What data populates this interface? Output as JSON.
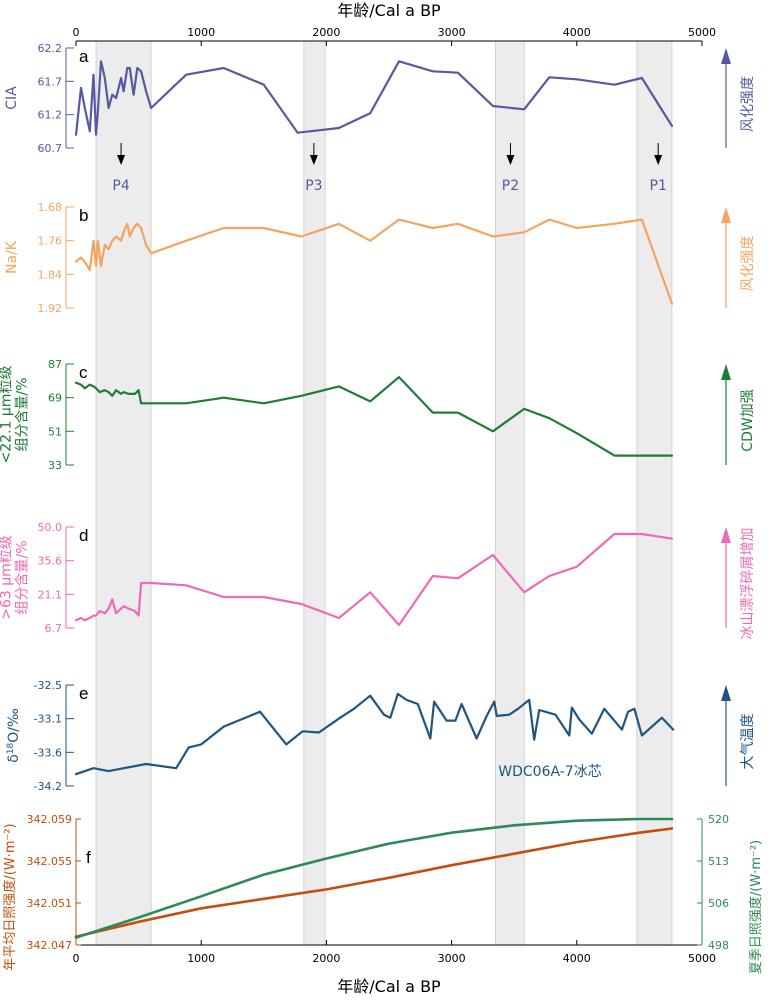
{
  "chart_data": {
    "type": "line",
    "x_axis": {
      "label": "年龄/Cal a BP",
      "range": [
        0,
        5000
      ],
      "ticks": [
        0,
        1000,
        2000,
        3000,
        4000,
        5000
      ]
    },
    "shaded_bands": [
      {
        "from": 160,
        "to": 600
      },
      {
        "from": 1820,
        "to": 1990
      },
      {
        "from": 3350,
        "to": 3580
      },
      {
        "from": 4480,
        "to": 4760
      }
    ],
    "periods": [
      {
        "label": "P4",
        "x": 360
      },
      {
        "label": "P3",
        "x": 1900
      },
      {
        "label": "P2",
        "x": 3470
      },
      {
        "label": "P1",
        "x": 4650
      }
    ],
    "panels": [
      {
        "letter": "a",
        "ylabel": "CIA",
        "color": "#565aa0",
        "yrange": [
          60.7,
          62.2
        ],
        "reverse": false,
        "ticks": [
          "62.2",
          "61.7",
          "61.2",
          "60.7"
        ],
        "right_label": "风化强度",
        "x": [
          0,
          40,
          70,
          110,
          140,
          160,
          175,
          200,
          230,
          260,
          290,
          320,
          360,
          380,
          410,
          430,
          460,
          490,
          520,
          560,
          600,
          880,
          1180,
          1500,
          1770,
          2100,
          2350,
          2580,
          2850,
          3050,
          3330,
          3580,
          3780,
          4000,
          4300,
          4520,
          4760
        ],
        "values": [
          60.9,
          61.6,
          61.3,
          60.95,
          61.8,
          60.9,
          61.25,
          62.0,
          61.75,
          61.3,
          61.5,
          61.45,
          61.75,
          61.55,
          61.9,
          61.9,
          61.5,
          61.9,
          61.85,
          61.55,
          61.3,
          61.8,
          61.9,
          61.65,
          60.93,
          61.0,
          61.22,
          62.0,
          61.85,
          61.83,
          61.33,
          61.28,
          61.76,
          61.73,
          61.65,
          61.75,
          61.03
        ]
      },
      {
        "letter": "b",
        "ylabel": "Na/K",
        "color": "#f4a460",
        "yrange": [
          1.68,
          1.92
        ],
        "reverse": true,
        "ticks": [
          "1.68",
          "1.76",
          "1.84",
          "1.92"
        ],
        "right_label": "风化强度",
        "x": [
          0,
          40,
          70,
          110,
          140,
          160,
          175,
          200,
          230,
          260,
          290,
          320,
          360,
          380,
          410,
          430,
          460,
          490,
          520,
          560,
          600,
          880,
          1180,
          1500,
          1800,
          2100,
          2350,
          2580,
          2850,
          3050,
          3330,
          3580,
          3780,
          4000,
          4300,
          4520,
          4760
        ],
        "values": [
          1.81,
          1.8,
          1.81,
          1.83,
          1.76,
          1.82,
          1.76,
          1.82,
          1.77,
          1.78,
          1.76,
          1.75,
          1.76,
          1.74,
          1.72,
          1.75,
          1.73,
          1.72,
          1.73,
          1.77,
          1.79,
          1.76,
          1.73,
          1.73,
          1.75,
          1.72,
          1.76,
          1.71,
          1.73,
          1.72,
          1.75,
          1.74,
          1.71,
          1.73,
          1.72,
          1.71,
          1.91
        ]
      },
      {
        "letter": "c",
        "ylabel": "<22.1 μm粒级组分含量/%",
        "color": "#1d7d36",
        "yrange": [
          33,
          87
        ],
        "reverse": false,
        "ticks": [
          "87",
          "69",
          "51",
          "33"
        ],
        "right_label": "CDW加强",
        "x": [
          0,
          40,
          70,
          110,
          140,
          160,
          190,
          230,
          260,
          290,
          320,
          360,
          380,
          420,
          470,
          500,
          520,
          560,
          600,
          880,
          1180,
          1500,
          1800,
          2100,
          2350,
          2580,
          2850,
          3050,
          3330,
          3580,
          3780,
          4000,
          4300,
          4520,
          4760
        ],
        "values": [
          77,
          76,
          74,
          76,
          75,
          74,
          72,
          73,
          72,
          70,
          73,
          71,
          72,
          71,
          71,
          73,
          66,
          66,
          66,
          66,
          69,
          66,
          70,
          75,
          67,
          80,
          61,
          61,
          51,
          63,
          58,
          50,
          38,
          38,
          38
        ]
      },
      {
        "letter": "d",
        "ylabel": ">63 μm粒级组分含量/%",
        "color": "#ee6ab5",
        "yrange": [
          6.7,
          50.0
        ],
        "reverse": false,
        "ticks": [
          "50.0",
          "35.6",
          "21.1",
          "6.7"
        ],
        "right_label": "冰山漂浮碎屑增加",
        "x": [
          0,
          40,
          70,
          110,
          140,
          160,
          190,
          230,
          260,
          290,
          320,
          360,
          380,
          420,
          470,
          500,
          520,
          560,
          600,
          880,
          1180,
          1500,
          1800,
          2100,
          2350,
          2580,
          2850,
          3050,
          3330,
          3580,
          3780,
          4000,
          4300,
          4520,
          4760
        ],
        "values": [
          10,
          11,
          10,
          11,
          12,
          12,
          14,
          13,
          15,
          19,
          13,
          15,
          16,
          15,
          14,
          12,
          26,
          26,
          26,
          25,
          20,
          20,
          17,
          11,
          22,
          8,
          29,
          28,
          38,
          22,
          29,
          33,
          47,
          47,
          45
        ]
      },
      {
        "letter": "e",
        "ylabel": "δ18O/‰",
        "color": "#1f5580",
        "yrange": [
          -34.2,
          -32.5
        ],
        "reverse": false,
        "ticks": [
          "-32.5",
          "-33.1",
          "-33.6",
          "-34.2"
        ],
        "right_label": "大气温度",
        "annotation": "WDC06A-7冰芯",
        "x": [
          0,
          140,
          260,
          560,
          800,
          900,
          1000,
          1180,
          1470,
          1680,
          1810,
          1940,
          2110,
          2220,
          2350,
          2460,
          2510,
          2570,
          2640,
          2730,
          2830,
          2860,
          2960,
          3030,
          3080,
          3200,
          3280,
          3340,
          3360,
          3460,
          3530,
          3620,
          3660,
          3700,
          3830,
          3940,
          3960,
          4020,
          4120,
          4220,
          4360,
          4410,
          4460,
          4520,
          4680,
          4770
        ],
        "values": [
          -34.0,
          -33.9,
          -33.95,
          -33.83,
          -33.9,
          -33.55,
          -33.5,
          -33.2,
          -32.95,
          -33.5,
          -33.28,
          -33.3,
          -33.05,
          -32.9,
          -32.68,
          -33.0,
          -33.05,
          -32.65,
          -32.75,
          -32.82,
          -33.4,
          -32.78,
          -33.1,
          -33.1,
          -32.82,
          -33.4,
          -33.02,
          -32.78,
          -33.02,
          -33.0,
          -32.9,
          -32.75,
          -33.42,
          -32.92,
          -33.0,
          -33.35,
          -32.88,
          -33.08,
          -33.32,
          -32.9,
          -33.25,
          -32.95,
          -32.9,
          -33.35,
          -33.05,
          -33.25
        ]
      },
      {
        "letter": "f",
        "ylabel_left": "年平均日照强度/(W·m⁻²)",
        "ylabel_right": "夏季日照强度/(W·m⁻²)",
        "left_color": "#c44d10",
        "right_color": "#2e8b57",
        "left_range": [
          342.047,
          342.059
        ],
        "right_range": [
          498,
          520
        ],
        "left_ticks": [
          "342.059",
          "342.055",
          "342.051",
          "342.047"
        ],
        "right_ticks": [
          "520",
          "513",
          "506",
          "498"
        ],
        "series": [
          {
            "axis": "left",
            "x": [
              0,
              500,
              1000,
              1500,
              2000,
              2500,
              3000,
              3500,
              4000,
              4500,
              4760
            ],
            "values": [
              342.0478,
              342.0492,
              342.0505,
              342.0514,
              342.0523,
              342.0534,
              342.0546,
              342.0557,
              342.0568,
              342.0577,
              342.0581
            ]
          },
          {
            "axis": "right",
            "x": [
              0,
              500,
              1000,
              1500,
              2000,
              2500,
              3000,
              3500,
              4000,
              4500,
              4760
            ],
            "values": [
              499.3,
              502.8,
              506.5,
              510.3,
              513.1,
              515.7,
              517.6,
              518.9,
              519.7,
              520.0,
              520.0
            ]
          }
        ]
      }
    ]
  }
}
